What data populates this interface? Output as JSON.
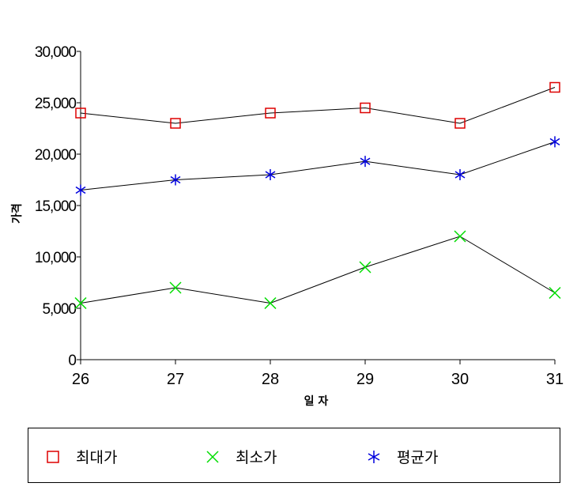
{
  "chart_data": {
    "type": "line",
    "title": "",
    "xlabel": "일 자",
    "ylabel": "가격",
    "x": [
      "26",
      "27",
      "28",
      "29",
      "30",
      "31"
    ],
    "ylim": [
      0,
      30000
    ],
    "yticks": [
      "0",
      "5,000",
      "10,000",
      "15,000",
      "20,000",
      "25,000",
      "30,000"
    ],
    "grid": false,
    "legend_position": "bottom",
    "series": [
      {
        "name": "최대가",
        "marker": "square",
        "color": "#dd0000",
        "values": [
          24000,
          23000,
          24000,
          24500,
          23000,
          26500
        ]
      },
      {
        "name": "최소가",
        "marker": "x",
        "color": "#00dd00",
        "values": [
          5500,
          7000,
          5500,
          9000,
          12000,
          6500
        ]
      },
      {
        "name": "평균가",
        "marker": "asterisk",
        "color": "#0000dd",
        "values": [
          16500,
          17500,
          18000,
          19300,
          18000,
          21200
        ]
      }
    ]
  }
}
